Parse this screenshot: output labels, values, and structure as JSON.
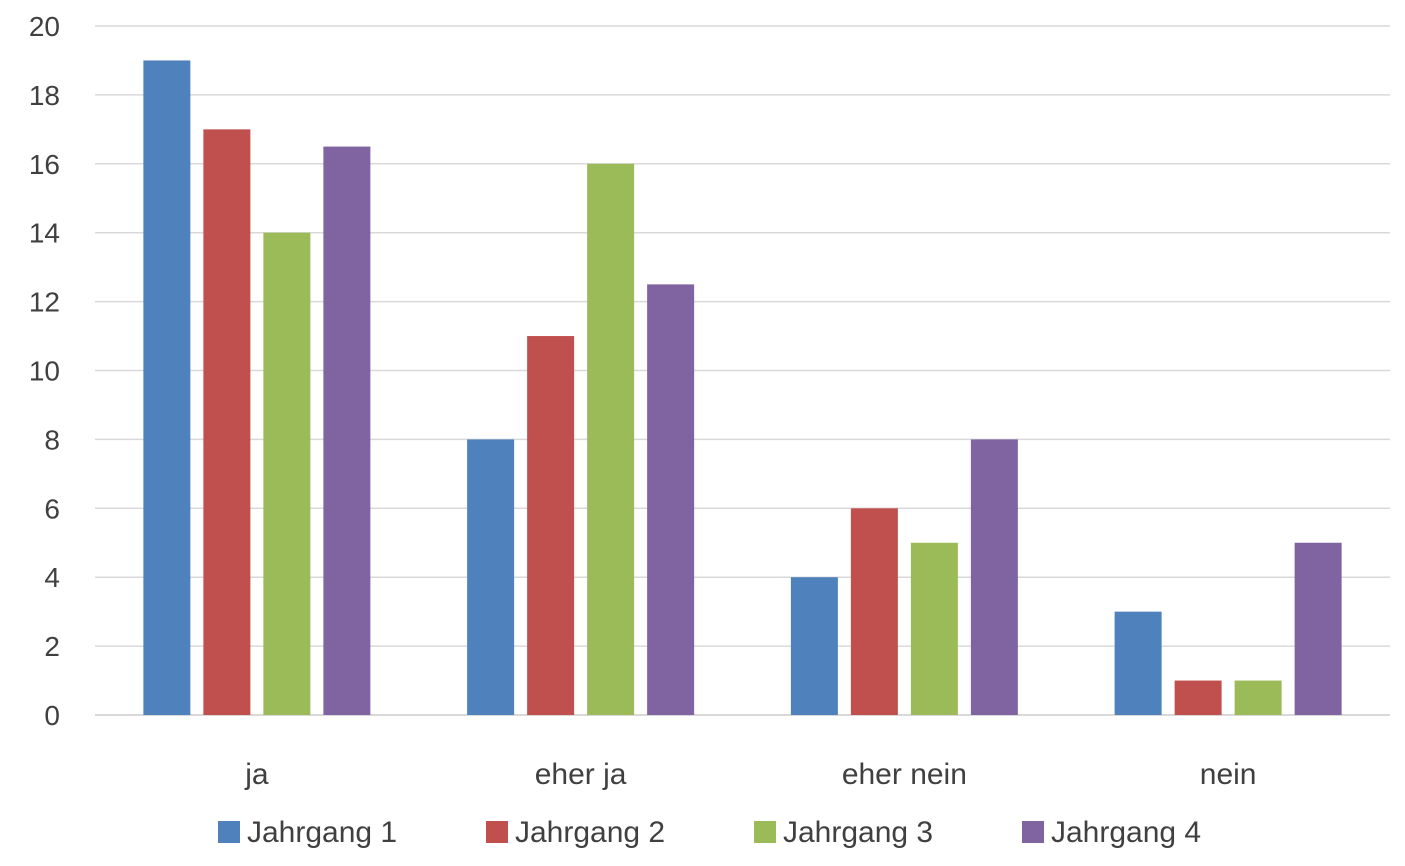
{
  "chart_data": {
    "type": "bar",
    "title": "",
    "xlabel": "",
    "ylabel": "",
    "categories": [
      "ja",
      "eher ja",
      "eher nein",
      "nein"
    ],
    "series": [
      {
        "name": "Jahrgang 1",
        "color": "#4f81bd",
        "values": [
          19,
          8,
          4,
          3
        ]
      },
      {
        "name": "Jahrgang 2",
        "color": "#c0504d",
        "values": [
          17,
          11,
          6,
          1
        ]
      },
      {
        "name": "Jahrgang 3",
        "color": "#9bbb59",
        "values": [
          14,
          16,
          5,
          1
        ]
      },
      {
        "name": "Jahrgang 4",
        "color": "#8064a2",
        "values": [
          16.5,
          12.5,
          8,
          5
        ]
      }
    ],
    "ylim": [
      0,
      20
    ],
    "yticks": [
      0,
      2,
      4,
      6,
      8,
      10,
      12,
      14,
      16,
      18,
      20
    ],
    "grid": true,
    "legend_position": "bottom"
  }
}
